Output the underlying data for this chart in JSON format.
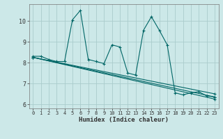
{
  "title": "",
  "xlabel": "Humidex (Indice chaleur)",
  "ylabel": "",
  "bg_color": "#cce8e8",
  "grid_color": "#aacccc",
  "line_color": "#006666",
  "xlim": [
    -0.5,
    23.5
  ],
  "ylim": [
    5.8,
    10.8
  ],
  "yticks": [
    6,
    7,
    8,
    9,
    10
  ],
  "xticks": [
    0,
    1,
    2,
    3,
    4,
    5,
    6,
    7,
    8,
    9,
    10,
    11,
    12,
    13,
    14,
    15,
    16,
    17,
    18,
    19,
    20,
    21,
    22,
    23
  ],
  "lines": [
    {
      "x": [
        0,
        1,
        2,
        3,
        4,
        5,
        6,
        7,
        8,
        9,
        10,
        11,
        12,
        13,
        14,
        15,
        16,
        17,
        18,
        19,
        20,
        21,
        22,
        23
      ],
      "y": [
        8.3,
        8.3,
        8.15,
        8.05,
        8.05,
        10.05,
        10.5,
        8.15,
        8.05,
        7.95,
        8.85,
        8.75,
        7.5,
        7.4,
        9.55,
        10.2,
        9.55,
        8.85,
        6.55,
        6.45,
        6.55,
        6.6,
        6.4,
        6.35
      ]
    },
    {
      "x": [
        0,
        23
      ],
      "y": [
        8.25,
        6.5
      ]
    },
    {
      "x": [
        0,
        23
      ],
      "y": [
        8.25,
        6.35
      ]
    },
    {
      "x": [
        0,
        23
      ],
      "y": [
        8.25,
        6.25
      ]
    }
  ]
}
